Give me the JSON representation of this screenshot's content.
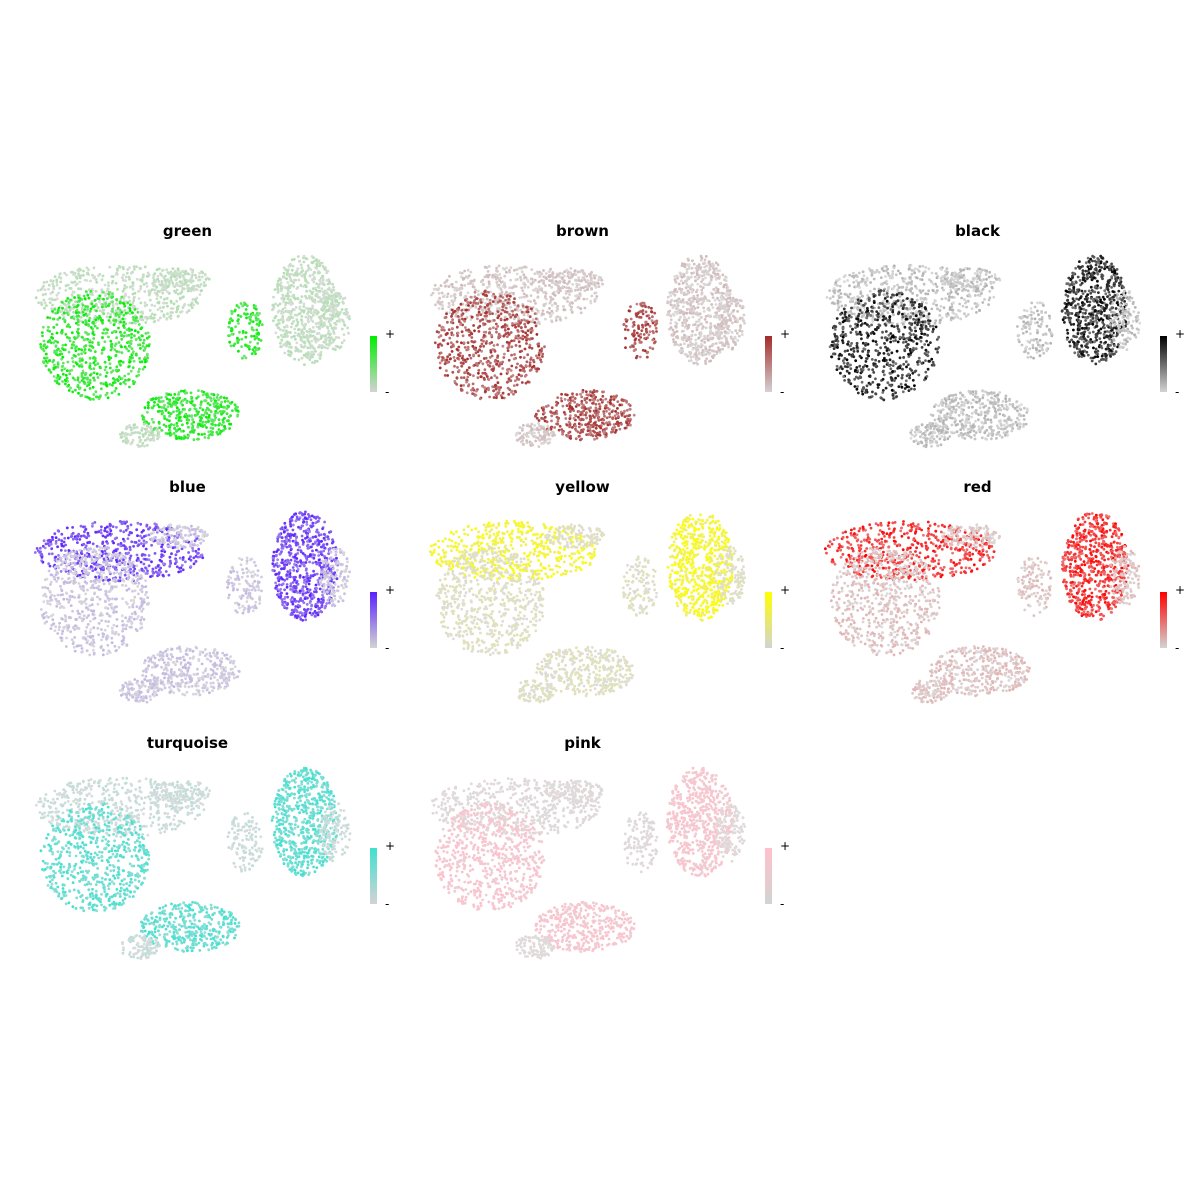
{
  "chart_data": {
    "type": "scatter",
    "description_panels": [
      {
        "title": "green",
        "color": "#00ee00",
        "high_regions": [
          "left-lobe",
          "bottom-lobe",
          "bridge"
        ],
        "legend_high": "+",
        "legend_low": "-"
      },
      {
        "title": "brown",
        "color": "#a52a2a",
        "high_regions": [
          "bottom-lobe",
          "left-lobe",
          "bridge"
        ],
        "legend_high": "+",
        "legend_low": "-"
      },
      {
        "title": "black",
        "color": "#000000",
        "high_regions": [
          "right-lobe",
          "left-lobe"
        ],
        "legend_high": "+",
        "legend_low": "-"
      },
      {
        "title": "blue",
        "color": "#5a20ff",
        "high_regions": [
          "top-left",
          "right-lobe"
        ],
        "legend_high": "+",
        "legend_low": "-"
      },
      {
        "title": "yellow",
        "color": "#ffff00",
        "high_regions": [
          "right-lobe",
          "top-left"
        ],
        "legend_high": "+",
        "legend_low": "-"
      },
      {
        "title": "red",
        "color": "#ff0000",
        "high_regions": [
          "right-lobe",
          "top-left"
        ],
        "legend_high": "+",
        "legend_low": "-"
      },
      {
        "title": "turquoise",
        "color": "#40e0d0",
        "high_regions": [
          "right-lobe",
          "left-lobe",
          "bottom-lobe"
        ],
        "legend_high": "+",
        "legend_low": "-"
      },
      {
        "title": "pink",
        "color": "#ffc0cb",
        "high_regions": [
          "right-lobe",
          "left-lobe",
          "bottom-lobe"
        ],
        "legend_high": "+",
        "legend_low": "-"
      }
    ],
    "grid": false,
    "axes": "none"
  },
  "panels": [
    {
      "title": "green",
      "plus": "+",
      "minus": "-"
    },
    {
      "title": "brown",
      "plus": "+",
      "minus": "-"
    },
    {
      "title": "black",
      "plus": "+",
      "minus": "-"
    },
    {
      "title": "blue",
      "plus": "+",
      "minus": "-"
    },
    {
      "title": "yellow",
      "plus": "+",
      "minus": "-"
    },
    {
      "title": "red",
      "plus": "+",
      "minus": "-"
    },
    {
      "title": "turquoise",
      "plus": "+",
      "minus": "-"
    },
    {
      "title": "pink",
      "plus": "+",
      "minus": "-"
    }
  ]
}
